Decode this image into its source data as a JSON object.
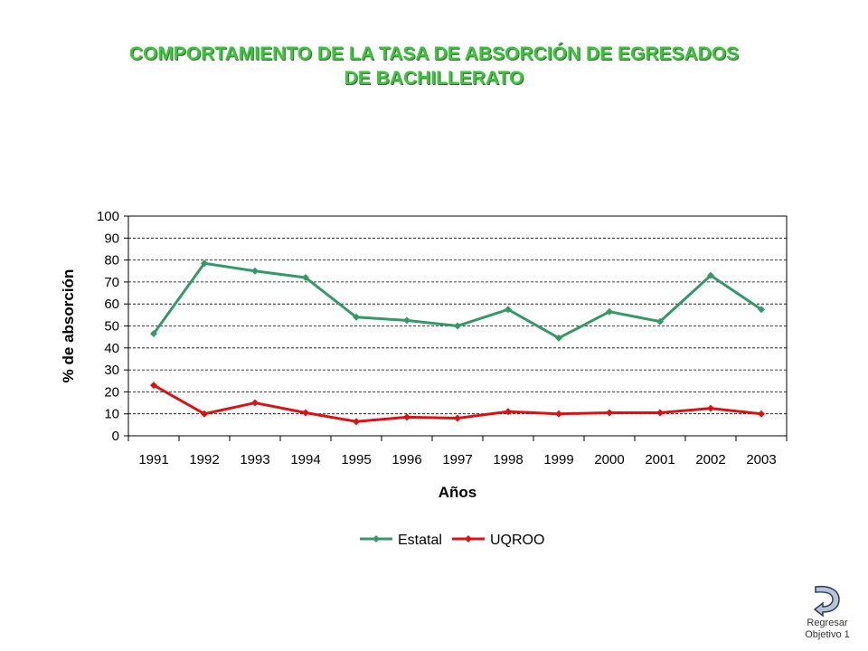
{
  "title": {
    "line1": "COMPORTAMIENTO DE LA TASA DE ABSORCIÓN DE EGRESADOS",
    "line2": "DE BACHILLERATO"
  },
  "nav": {
    "line1": "Regresar",
    "line2": "Objetivo 1",
    "icon": "return-arrow-icon"
  },
  "chart_data": {
    "type": "line",
    "categories": [
      "1991",
      "1992",
      "1993",
      "1994",
      "1995",
      "1996",
      "1997",
      "1998",
      "1999",
      "2000",
      "2001",
      "2002",
      "2003"
    ],
    "series": [
      {
        "name": "Estatal",
        "color": "#339966",
        "values": [
          46.5,
          78.5,
          75,
          72,
          54,
          52.5,
          50,
          57.5,
          44.5,
          56.5,
          52,
          73,
          57.5
        ]
      },
      {
        "name": "UQROO",
        "color": "#dd1111",
        "values": [
          23,
          10,
          15,
          10.5,
          6.5,
          8.5,
          8,
          11,
          10,
          10.5,
          10.5,
          12.5,
          10
        ]
      }
    ],
    "xlabel": "Años",
    "ylabel": "% de absorción",
    "ylim": [
      0,
      100
    ],
    "yticks": [
      0,
      10,
      20,
      30,
      40,
      50,
      60,
      70,
      80,
      90,
      100
    ],
    "grid": "horizontal dashed",
    "legend": "bottom"
  }
}
